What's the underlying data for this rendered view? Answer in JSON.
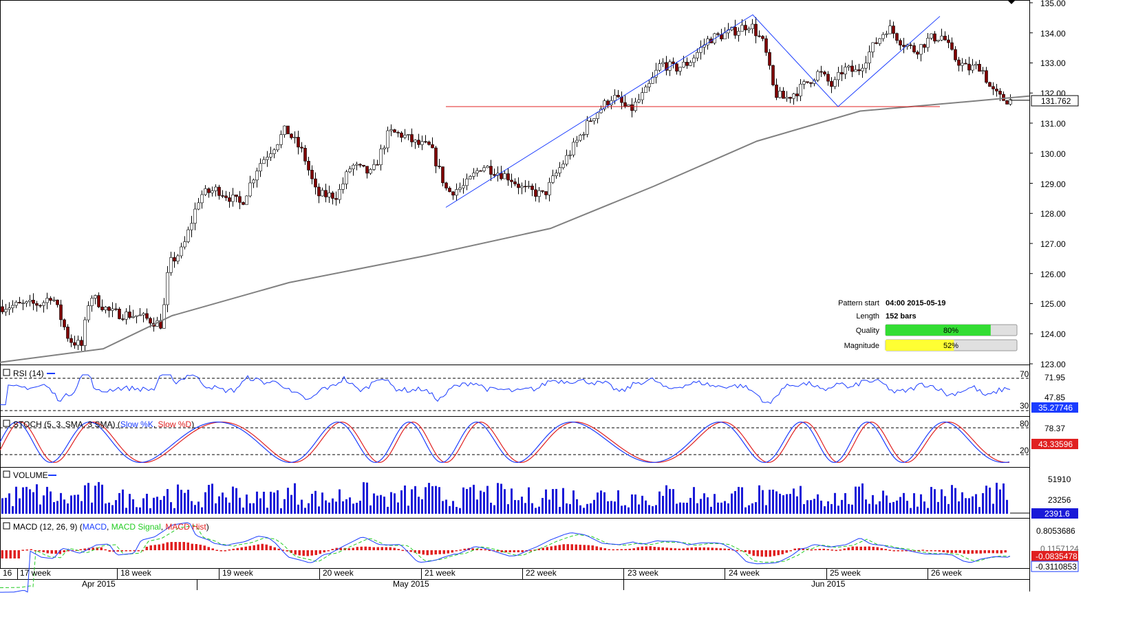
{
  "colors": {
    "up_candle": "#ffffff",
    "down_candle": "#800000",
    "pattern_line": "#1a3cff",
    "support_line": "#e02020",
    "ma_line": "#808080",
    "rsi_line": "#1a3cff",
    "stoch_k": "#1a3cff",
    "stoch_d": "#e02020",
    "volume_bar": "#1a1ad8",
    "macd_line": "#1a3cff",
    "macd_signal": "#22cc22",
    "macd_hist": "#e02020",
    "quality_fill": "#33dd33",
    "magnitude_fill": "#ffff33"
  },
  "price_axis": {
    "ticks": [
      "135.00",
      "134.00",
      "133.00",
      "132.00",
      "131.00",
      "130.00",
      "129.00",
      "128.00",
      "127.00",
      "126.00",
      "125.00",
      "124.00",
      "123.00"
    ],
    "current_price": "131.762"
  },
  "info_panel": {
    "pattern_start_label": "Pattern start",
    "pattern_start_value": "04:00 2015-05-19",
    "length_label": "Length",
    "length_value": "152 bars",
    "quality_label": "Quality",
    "quality_value": "80%",
    "quality_fraction": 0.8,
    "magnitude_label": "Magnitude",
    "magnitude_value": "52%",
    "magnitude_fraction": 0.52
  },
  "rsi": {
    "title": "RSI (14)",
    "upper_line_label": "70",
    "lower_line_label": "30",
    "axis_label": "71.95",
    "axis_label2": "47.85",
    "current_value": "35.27746"
  },
  "stoch": {
    "title_prefix": "STOCH (5, 3, SMA, 3 SMA) (",
    "k_label": "Slow %K",
    "separator": ", ",
    "d_label": "Slow %D",
    "title_suffix": ")",
    "upper_line_label": "80",
    "lower_line_label": "20",
    "axis_label": "78.37",
    "current_value": "43.33596"
  },
  "volume": {
    "title": "VOLUME",
    "axis_label1": "51910",
    "axis_label2": "23256",
    "current_value": "2391.6"
  },
  "macd": {
    "title_prefix": "MACD (12, 26, 9) (",
    "macd_label": "MACD",
    "separator": ", ",
    "signal_label": "MACD Signal",
    "hist_label": "MACD Hist",
    "title_suffix": ")",
    "axis_label": "0.8053686",
    "axis_label2": "0.1157124",
    "current_value": "-0.0835478",
    "current_value2": "-0.3110853"
  },
  "time_axis": {
    "weeks": [
      "16",
      "17 week",
      "18 week",
      "19 week",
      "20 week",
      "21 week",
      "22 week",
      "23 week",
      "24 week",
      "25 week",
      "26 week"
    ],
    "months": [
      "Apr 2015",
      "May 2015",
      "Jun 2015"
    ]
  },
  "chart_data": {
    "type": "candlestick",
    "symbol_timeframe": "4H",
    "ylim": [
      123,
      135
    ],
    "moving_average_points": [
      [
        0,
        123.05
      ],
      [
        150,
        123.5
      ],
      [
        250,
        124.6
      ],
      [
        420,
        125.7
      ],
      [
        620,
        126.6
      ],
      [
        800,
        127.5
      ],
      [
        950,
        128.9
      ],
      [
        1100,
        130.4
      ],
      [
        1250,
        131.4
      ],
      [
        1400,
        131.7
      ],
      [
        1496,
        131.9
      ]
    ],
    "pattern": {
      "type": "double top",
      "points": [
        [
          648,
          128.2
        ],
        [
          1094,
          134.6
        ],
        [
          1218,
          131.55
        ],
        [
          1366,
          134.55
        ]
      ],
      "support_level": 131.55
    },
    "rsi_levels": [
      30,
      70
    ],
    "stoch_levels": [
      20,
      80
    ]
  }
}
